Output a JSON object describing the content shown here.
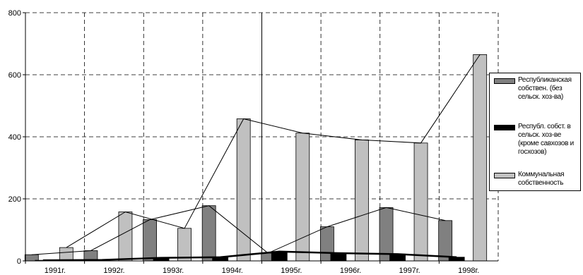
{
  "chart_data": {
    "type": "bar",
    "title": "",
    "xlabel": "",
    "ylabel": "",
    "ylim": [
      0,
      800
    ],
    "yticks": [
      0,
      200,
      400,
      600,
      800
    ],
    "grid": true,
    "legend_position": "right",
    "categories": [
      "1991г.",
      "1992г.",
      "1993г.",
      "1994г.",
      "1995г.",
      "1996г.",
      "1997г.",
      "1998г."
    ],
    "series": [
      {
        "name": "Республиканская собствен. (без сельск. хоз-ва)",
        "color": "#808080",
        "values": [
          20,
          33,
          133,
          178,
          25,
          110,
          172,
          130
        ]
      },
      {
        "name": "Республ. собст. в сельск. хоз-ве (кроме савхозов и госхозов)",
        "color": "#000000",
        "values": [
          2,
          3,
          10,
          12,
          30,
          25,
          22,
          12
        ]
      },
      {
        "name": "Коммунальная собственность",
        "color": "#c0c0c0",
        "values": [
          43,
          158,
          105,
          458,
          412,
          390,
          380,
          665
        ]
      }
    ],
    "trend_lines": [
      {
        "series": "Республиканская собствен. (без сельск. хоз-ва)",
        "values": [
          20,
          33,
          133,
          178,
          25,
          110,
          172,
          130
        ]
      },
      {
        "series": "Коммунальная собственность",
        "values": [
          43,
          158,
          105,
          458,
          412,
          390,
          380,
          665
        ]
      }
    ]
  }
}
